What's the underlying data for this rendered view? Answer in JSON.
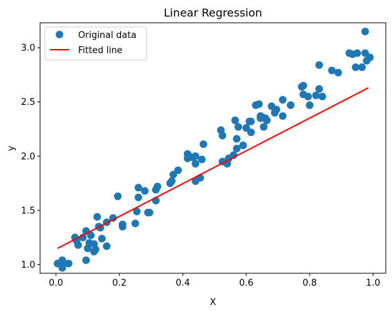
{
  "chart_data": {
    "type": "scatter",
    "title": "Linear Regression",
    "xlabel": "X",
    "ylabel": "y",
    "xlim": [
      -0.05,
      1.04
    ],
    "ylim": [
      0.92,
      3.23
    ],
    "xticks": [
      "0.0",
      "0.2",
      "0.4",
      "0.6",
      "0.8",
      "1.0"
    ],
    "xtick_values": [
      0.0,
      0.2,
      0.4,
      0.6,
      0.8,
      1.0
    ],
    "yticks": [
      "1.0",
      "1.5",
      "2.0",
      "2.5",
      "3.0"
    ],
    "ytick_values": [
      1.0,
      1.5,
      2.0,
      2.5,
      3.0
    ],
    "grid": false,
    "legend_position": "top-left",
    "series": [
      {
        "name": "Original data",
        "kind": "scatter",
        "color": "#1f77b4",
        "points": [
          [
            0.005,
            1.01
          ],
          [
            0.02,
            1.04
          ],
          [
            0.02,
            0.99
          ],
          [
            0.02,
            0.97
          ],
          [
            0.04,
            1.01
          ],
          [
            0.06,
            1.25
          ],
          [
            0.065,
            1.22
          ],
          [
            0.07,
            1.18
          ],
          [
            0.085,
            1.25
          ],
          [
            0.095,
            1.31
          ],
          [
            0.095,
            1.04
          ],
          [
            0.1,
            1.15
          ],
          [
            0.105,
            1.2
          ],
          [
            0.11,
            1.27
          ],
          [
            0.12,
            1.19
          ],
          [
            0.12,
            1.12
          ],
          [
            0.125,
            1.14
          ],
          [
            0.13,
            1.44
          ],
          [
            0.135,
            1.35
          ],
          [
            0.14,
            1.34
          ],
          [
            0.145,
            1.24
          ],
          [
            0.16,
            1.17
          ],
          [
            0.16,
            1.39
          ],
          [
            0.18,
            1.43
          ],
          [
            0.195,
            1.63
          ],
          [
            0.21,
            1.35
          ],
          [
            0.21,
            1.37
          ],
          [
            0.25,
            1.38
          ],
          [
            0.255,
            1.49
          ],
          [
            0.26,
            1.62
          ],
          [
            0.26,
            1.71
          ],
          [
            0.28,
            1.68
          ],
          [
            0.29,
            1.48
          ],
          [
            0.295,
            1.48
          ],
          [
            0.315,
            1.69
          ],
          [
            0.315,
            1.59
          ],
          [
            0.32,
            1.72
          ],
          [
            0.36,
            1.75
          ],
          [
            0.365,
            1.77
          ],
          [
            0.37,
            1.83
          ],
          [
            0.385,
            1.87
          ],
          [
            0.415,
            2.02
          ],
          [
            0.415,
            1.98
          ],
          [
            0.42,
            1.99
          ],
          [
            0.43,
            1.99
          ],
          [
            0.44,
            1.93
          ],
          [
            0.44,
            2.0
          ],
          [
            0.44,
            1.77
          ],
          [
            0.455,
            1.8
          ],
          [
            0.46,
            1.97
          ],
          [
            0.465,
            2.11
          ],
          [
            0.52,
            2.24
          ],
          [
            0.525,
            1.95
          ],
          [
            0.525,
            2.19
          ],
          [
            0.54,
            1.93
          ],
          [
            0.545,
            1.98
          ],
          [
            0.56,
            2.01
          ],
          [
            0.565,
            2.33
          ],
          [
            0.57,
            2.16
          ],
          [
            0.57,
            2.07
          ],
          [
            0.575,
            2.27
          ],
          [
            0.59,
            2.1
          ],
          [
            0.6,
            2.26
          ],
          [
            0.61,
            2.32
          ],
          [
            0.615,
            2.22
          ],
          [
            0.615,
            2.32
          ],
          [
            0.63,
            2.47
          ],
          [
            0.64,
            2.48
          ],
          [
            0.645,
            2.37
          ],
          [
            0.645,
            2.35
          ],
          [
            0.65,
            2.36
          ],
          [
            0.655,
            2.27
          ],
          [
            0.66,
            2.35
          ],
          [
            0.665,
            2.33
          ],
          [
            0.68,
            2.46
          ],
          [
            0.69,
            2.4
          ],
          [
            0.695,
            2.43
          ],
          [
            0.715,
            2.37
          ],
          [
            0.715,
            2.52
          ],
          [
            0.74,
            2.47
          ],
          [
            0.775,
            2.64
          ],
          [
            0.78,
            2.65
          ],
          [
            0.78,
            2.57
          ],
          [
            0.795,
            2.55
          ],
          [
            0.8,
            2.47
          ],
          [
            0.82,
            2.56
          ],
          [
            0.83,
            2.62
          ],
          [
            0.83,
            2.84
          ],
          [
            0.84,
            2.55
          ],
          [
            0.87,
            2.79
          ],
          [
            0.89,
            2.77
          ],
          [
            0.925,
            2.95
          ],
          [
            0.935,
            2.94
          ],
          [
            0.945,
            2.82
          ],
          [
            0.95,
            2.95
          ],
          [
            0.965,
            2.82
          ],
          [
            0.975,
            3.15
          ],
          [
            0.975,
            2.95
          ],
          [
            0.98,
            2.88
          ],
          [
            0.99,
            2.91
          ]
        ]
      },
      {
        "name": "Fitted line",
        "kind": "line",
        "color": "#ff0000",
        "points": [
          [
            0.005,
            1.15
          ],
          [
            0.985,
            2.63
          ]
        ]
      }
    ]
  }
}
